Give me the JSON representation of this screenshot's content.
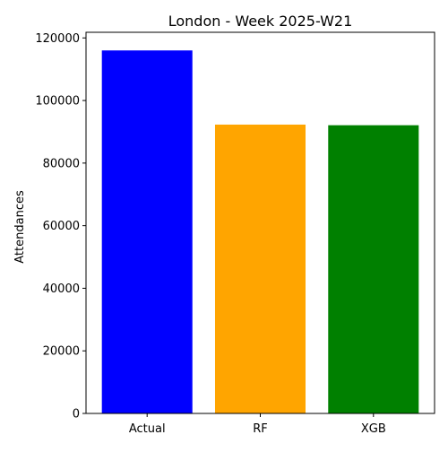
{
  "chart_data": {
    "type": "bar",
    "title": "London - Week 2025-W21",
    "xlabel": "",
    "ylabel": "Attendances",
    "categories": [
      "Actual",
      "RF",
      "XGB"
    ],
    "values": [
      116000,
      92300,
      92100
    ],
    "colors": [
      "#0000ff",
      "#ffa500",
      "#008000"
    ],
    "ylim": [
      0,
      121800
    ],
    "yticks": [
      0,
      20000,
      40000,
      60000,
      80000,
      100000,
      120000
    ],
    "ytick_labels": [
      "0",
      "20000",
      "40000",
      "60000",
      "80000",
      "100000",
      "120000"
    ],
    "grid": false,
    "legend": "none"
  }
}
